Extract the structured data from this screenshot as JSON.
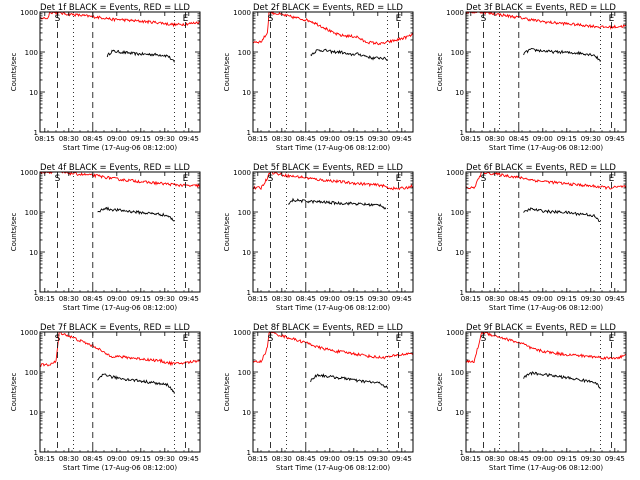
{
  "figure": {
    "background": "#ffffff",
    "colors": {
      "events": "#000000",
      "lld": "#ff0000"
    },
    "xticks": [
      "08:15",
      "08:30",
      "08:45",
      "09:00",
      "09:15",
      "09:30",
      "09:45"
    ],
    "yticks": [
      "1",
      "10",
      "100",
      "1000"
    ],
    "markers": {
      "start": "S",
      "end": "E"
    }
  },
  "chart_data": [
    {
      "type": "line",
      "title": "Det 1f BLACK = Events, RED = LLD",
      "xlabel": "Start Time (17-Aug-06 08:12:00)",
      "ylabel": "Counts/sec",
      "ylim": [
        1,
        1000
      ],
      "yscale": "log",
      "grid": false,
      "series": [
        {
          "name": "Events",
          "color": "#000000",
          "t": [
            42,
            45,
            50,
            55,
            60,
            65,
            70,
            75,
            80,
            84
          ],
          "values": [
            80,
            105,
            100,
            95,
            90,
            88,
            87,
            85,
            80,
            55
          ]
        },
        {
          "name": "LLD",
          "color": "#ff0000",
          "t": [
            0,
            5,
            6,
            42,
            45,
            50,
            55,
            60,
            65,
            70,
            75,
            80,
            85,
            90,
            95,
            100
          ],
          "values": [
            700,
            700,
            1000,
            700,
            650,
            650,
            620,
            600,
            580,
            560,
            540,
            500,
            480,
            500,
            520,
            560
          ]
        }
      ]
    },
    {
      "type": "line",
      "title": "Det 2f BLACK = Events, RED = LLD",
      "xlabel": "Start Time (17-Aug-06 08:12:00)",
      "ylabel": "Counts/sec",
      "ylim": [
        1,
        1000
      ],
      "yscale": "log",
      "grid": false,
      "series": [
        {
          "name": "Events",
          "color": "#000000",
          "t": [
            36,
            40,
            45,
            50,
            55,
            60,
            65,
            70,
            75,
            80,
            84
          ],
          "values": [
            85,
            110,
            110,
            100,
            100,
            85,
            90,
            80,
            70,
            72,
            65
          ]
        },
        {
          "name": "LLD",
          "color": "#ff0000",
          "t": [
            0,
            5,
            9,
            10,
            36,
            40,
            45,
            50,
            55,
            60,
            65,
            70,
            75,
            80,
            85,
            90,
            95,
            100
          ],
          "values": [
            180,
            180,
            300,
            1000,
            600,
            500,
            400,
            300,
            260,
            250,
            240,
            180,
            170,
            160,
            180,
            200,
            230,
            270
          ]
        }
      ]
    },
    {
      "type": "line",
      "title": "Det 3f BLACK = Events, RED = LLD",
      "xlabel": "Start Time (17-Aug-06 08:12:00)",
      "ylabel": "Counts/sec",
      "ylim": [
        1,
        1000
      ],
      "yscale": "log",
      "grid": false,
      "series": [
        {
          "name": "Events",
          "color": "#000000",
          "t": [
            36,
            40,
            45,
            50,
            55,
            60,
            65,
            70,
            75,
            80,
            84
          ],
          "values": [
            90,
            115,
            110,
            105,
            100,
            100,
            95,
            95,
            90,
            85,
            60
          ]
        },
        {
          "name": "LLD",
          "color": "#ff0000",
          "t": [
            0,
            5,
            10,
            36,
            40,
            45,
            50,
            55,
            60,
            65,
            70,
            75,
            80,
            85,
            90,
            95,
            100
          ],
          "values": [
            1000,
            1000,
            1000,
            700,
            650,
            600,
            560,
            540,
            520,
            500,
            480,
            460,
            440,
            420,
            420,
            430,
            450
          ]
        }
      ]
    },
    {
      "type": "line",
      "title": "Det 4f BLACK = Events, RED = LLD",
      "xlabel": "Start Time (17-Aug-06 08:12:00)",
      "ylabel": "Counts/sec",
      "ylim": [
        1,
        1000
      ],
      "yscale": "log",
      "grid": false,
      "series": [
        {
          "name": "Events",
          "color": "#000000",
          "t": [
            36,
            40,
            45,
            50,
            55,
            60,
            65,
            70,
            75,
            80,
            84
          ],
          "values": [
            95,
            125,
            115,
            110,
            105,
            100,
            95,
            92,
            88,
            80,
            60
          ]
        },
        {
          "name": "LLD",
          "color": "#ff0000",
          "t": [
            0,
            5,
            10,
            36,
            40,
            45,
            50,
            55,
            60,
            65,
            70,
            75,
            80,
            85,
            90,
            95,
            100
          ],
          "values": [
            1000,
            1000,
            1000,
            800,
            750,
            700,
            650,
            620,
            600,
            560,
            540,
            520,
            500,
            480,
            460,
            450,
            460
          ]
        }
      ]
    },
    {
      "type": "line",
      "title": "Det 5f BLACK = Events, RED = LLD",
      "xlabel": "Start Time (17-Aug-06 08:12:00)",
      "ylabel": "Counts/sec",
      "ylim": [
        1,
        1000
      ],
      "yscale": "log",
      "grid": false,
      "series": [
        {
          "name": "Events",
          "color": "#000000",
          "t": [
            22,
            25,
            30,
            35,
            40,
            45,
            50,
            55,
            60,
            65,
            70,
            75,
            80,
            83
          ],
          "values": [
            150,
            200,
            190,
            185,
            180,
            175,
            170,
            165,
            165,
            160,
            155,
            150,
            150,
            120
          ]
        },
        {
          "name": "LLD",
          "color": "#ff0000",
          "t": [
            0,
            5,
            9,
            10,
            22,
            25,
            30,
            35,
            40,
            45,
            50,
            55,
            60,
            65,
            70,
            75,
            80,
            85,
            90,
            95,
            100
          ],
          "values": [
            400,
            400,
            700,
            1000,
            800,
            780,
            750,
            700,
            650,
            620,
            600,
            570,
            540,
            520,
            500,
            480,
            470,
            400,
            380,
            400,
            450
          ]
        }
      ]
    },
    {
      "type": "line",
      "title": "Det 6f BLACK = Events, RED = LLD",
      "xlabel": "Start Time (17-Aug-06 08:12:00)",
      "ylabel": "Counts/sec",
      "ylim": [
        1,
        1000
      ],
      "yscale": "log",
      "grid": false,
      "series": [
        {
          "name": "Events",
          "color": "#000000",
          "t": [
            36,
            40,
            45,
            50,
            55,
            60,
            65,
            70,
            75,
            80,
            84
          ],
          "values": [
            95,
            120,
            110,
            105,
            100,
            100,
            95,
            90,
            88,
            80,
            55
          ]
        },
        {
          "name": "LLD",
          "color": "#ff0000",
          "t": [
            0,
            5,
            10,
            36,
            40,
            45,
            50,
            55,
            60,
            65,
            70,
            75,
            80,
            85,
            90,
            95,
            100
          ],
          "values": [
            400,
            400,
            1000,
            700,
            650,
            600,
            580,
            550,
            520,
            500,
            480,
            460,
            440,
            420,
            400,
            420,
            440
          ]
        }
      ]
    },
    {
      "type": "line",
      "title": "Det 7f BLACK = Events, RED = LLD",
      "xlabel": "Start Time (17-Aug-06 08:12:00)",
      "ylabel": "Counts/sec",
      "ylim": [
        1,
        1000
      ],
      "yscale": "log",
      "grid": false,
      "series": [
        {
          "name": "Events",
          "color": "#000000",
          "t": [
            36,
            40,
            45,
            50,
            55,
            60,
            65,
            70,
            75,
            80,
            84
          ],
          "values": [
            60,
            90,
            75,
            70,
            65,
            62,
            58,
            55,
            50,
            48,
            30
          ]
        },
        {
          "name": "LLD",
          "color": "#ff0000",
          "t": [
            0,
            5,
            10,
            12,
            36,
            40,
            45,
            50,
            55,
            60,
            65,
            70,
            75,
            80,
            85,
            90,
            95,
            100
          ],
          "values": [
            150,
            150,
            180,
            1000,
            400,
            300,
            250,
            240,
            230,
            220,
            210,
            200,
            190,
            170,
            160,
            170,
            180,
            200
          ]
        }
      ]
    },
    {
      "type": "line",
      "title": "Det 8f BLACK = Events, RED = LLD",
      "xlabel": "Start Time (17-Aug-06 08:12:00)",
      "ylabel": "Counts/sec",
      "ylim": [
        1,
        1000
      ],
      "yscale": "log",
      "grid": false,
      "series": [
        {
          "name": "Events",
          "color": "#000000",
          "t": [
            36,
            40,
            45,
            50,
            55,
            60,
            65,
            70,
            75,
            80,
            84
          ],
          "values": [
            60,
            85,
            80,
            75,
            70,
            68,
            60,
            58,
            55,
            52,
            40
          ]
        },
        {
          "name": "LLD",
          "color": "#ff0000",
          "t": [
            0,
            5,
            9,
            10,
            36,
            40,
            45,
            50,
            55,
            60,
            65,
            70,
            75,
            80,
            85,
            90,
            95,
            100
          ],
          "values": [
            180,
            180,
            400,
            1000,
            500,
            420,
            380,
            340,
            320,
            300,
            280,
            260,
            240,
            230,
            240,
            260,
            280,
            300
          ]
        }
      ]
    },
    {
      "type": "line",
      "title": "Det 9f BLACK = Events, RED = LLD",
      "xlabel": "Start Time (17-Aug-06 08:12:00)",
      "ylabel": "Counts/sec",
      "ylim": [
        1,
        1000
      ],
      "yscale": "log",
      "grid": false,
      "series": [
        {
          "name": "Events",
          "color": "#000000",
          "t": [
            36,
            40,
            45,
            50,
            55,
            60,
            65,
            70,
            75,
            80,
            84
          ],
          "values": [
            70,
            95,
            90,
            85,
            80,
            75,
            70,
            65,
            60,
            58,
            40
          ]
        },
        {
          "name": "LLD",
          "color": "#ff0000",
          "t": [
            0,
            5,
            10,
            36,
            40,
            45,
            50,
            55,
            60,
            65,
            70,
            75,
            80,
            85,
            90,
            95,
            100
          ],
          "values": [
            180,
            180,
            1000,
            500,
            400,
            350,
            320,
            300,
            280,
            270,
            260,
            250,
            240,
            230,
            220,
            230,
            260
          ]
        }
      ]
    }
  ]
}
